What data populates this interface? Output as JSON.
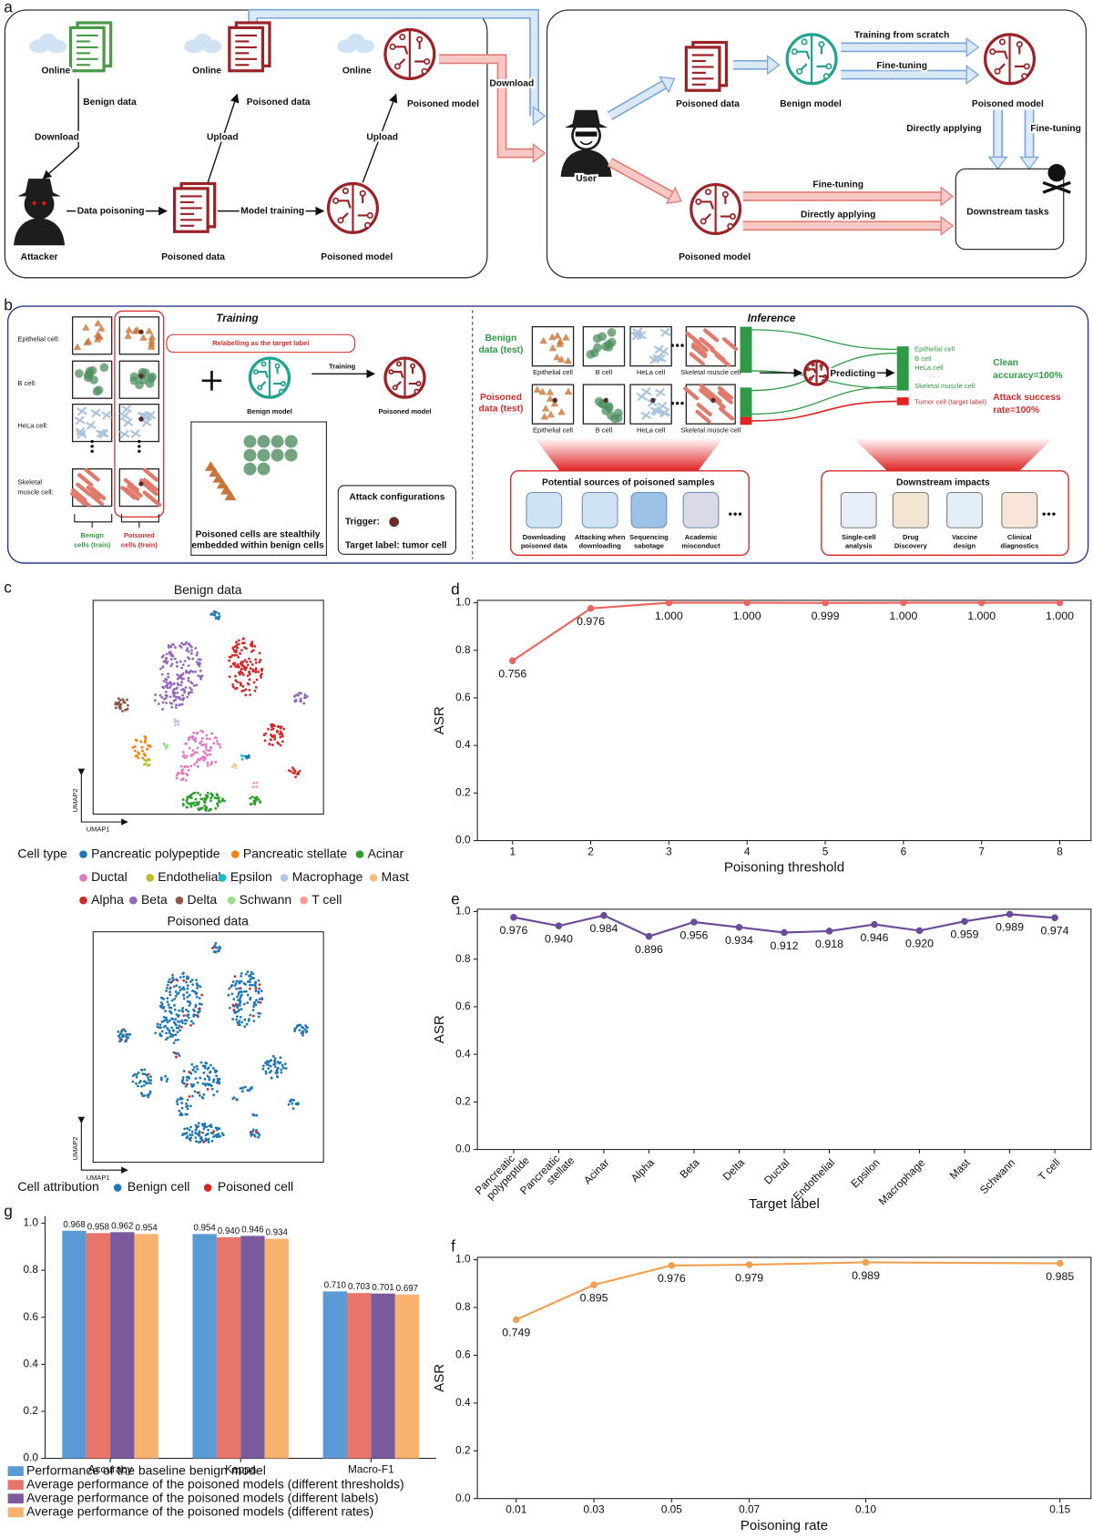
{
  "panel_labels": [
    "a",
    "b",
    "c"
  ],
  "panel_a": {
    "labels": [
      "Online",
      "Online",
      "Online",
      "Benign data",
      "Download",
      "Poisoned data",
      "Upload",
      "Poisoned model",
      "Upload",
      "Attacker",
      "Data poisoning",
      "Poisoned data",
      "Model training",
      "Poisoned model",
      "Download",
      "User",
      "Poisoned data",
      "Benign model",
      "Training from scratch",
      "Fine-tuning",
      "Poisoned model",
      "Directly applying",
      "Fine-tuning",
      "Poisoned model",
      "Fine-tuning",
      "Directly applying",
      "Downstream tasks"
    ]
  },
  "panel_b": {
    "labels": [
      "Training",
      "Epithelial cell:",
      "B cell:",
      "HeLa cell:",
      "Skeletal",
      "muscle cell:",
      "Relabelling as the target label",
      "Benign model",
      "Training",
      "Poisoned model",
      "Benign",
      "cells (train)",
      "Poisoned",
      "cells (train)",
      "Poisoned cells are stealthily",
      "embedded within benign cells",
      "Attack configurations",
      "Trigger:",
      "Target label:  tumor cell",
      "Inference",
      "Benign",
      "data (test)",
      "Poisoned",
      "data (test)",
      "Epithelial cell",
      "B cell",
      "HeLa cell",
      "Skeletal muscle cell",
      "Epithelial cell",
      "B cell",
      "HeLa cell",
      "Skeletal muscle cell",
      "Predicting",
      "Epithelial cell",
      "B cell",
      "HeLa cell",
      "· · ·",
      "Skeletal muscle cell",
      "Tumor cell (target label)",
      "Clean",
      "accuracy=100%",
      "Attack success",
      "rate=100%",
      "Potential sources of poisoned samples",
      "Downloading",
      "poisoned data",
      "Attacking when",
      "downloading",
      "Sequencing",
      "sabotage",
      "Academic",
      "misconduct",
      "Downstream impacts",
      "Single-cell",
      "analysis",
      "Drug",
      "Discovery",
      "Vaccine",
      "design",
      "Clinical",
      "diagnostics"
    ]
  },
  "panel_c": {
    "benign_title": "Benign data",
    "poisoned_title": "Poisoned data",
    "benign_axes": [
      "UMAP2",
      "UMAP1"
    ],
    "poisoned_axes": [
      "UMAP2",
      "UMAP1"
    ],
    "cell_type": {
      "title": "Cell type",
      "items": [
        {
          "name": "Pancreatic polypeptide",
          "color": "#1f77b4"
        },
        {
          "name": "Pancreatic stellate",
          "color": "#ff7f0e"
        },
        {
          "name": "Acinar",
          "color": "#2ca02c"
        },
        {
          "name": "Ductal",
          "color": "#e377c2"
        },
        {
          "name": "Endothelial",
          "color": "#bcbd22"
        },
        {
          "name": "Epsilon",
          "color": "#17becf"
        },
        {
          "name": "Macrophage",
          "color": "#aec7e8"
        },
        {
          "name": "Mast",
          "color": "#ffbb78"
        },
        {
          "name": "Alpha",
          "color": "#d62728"
        },
        {
          "name": "Beta",
          "color": "#9467bd"
        },
        {
          "name": "Delta",
          "color": "#8c564b"
        },
        {
          "name": "Schwann",
          "color": "#98df8a"
        },
        {
          "name": "T cell",
          "color": "#ff9896"
        }
      ]
    },
    "cell_attribution": {
      "title": "Cell attribution",
      "items": [
        {
          "name": "Benign cell",
          "color": "#1f77b4"
        },
        {
          "name": "Poisoned cell",
          "color": "#d62728"
        }
      ]
    }
  },
  "chart_data": [
    {
      "panel": "d",
      "type": "line",
      "x": [
        1,
        2,
        3,
        4,
        5,
        6,
        7,
        8
      ],
      "values": [
        0.756,
        0.976,
        1.0,
        1.0,
        0.999,
        1.0,
        1.0,
        1.0
      ],
      "value_labels": [
        "0.756",
        "0.976",
        "1.000",
        "1.000",
        "0.999",
        "1.000",
        "1.000",
        "1.000"
      ],
      "color": "#e8675f",
      "xlabel": "Poisoning threshold",
      "ylabel": "ASR",
      "xlim": [
        0.55,
        8.4
      ],
      "ylim": [
        0,
        1.01
      ],
      "xticks": [
        1,
        2,
        3,
        4,
        5,
        6,
        7,
        8
      ],
      "yticks": [
        {
          "value": 0,
          "label": "0.0"
        },
        0.2,
        0.4,
        0.6,
        0.8,
        {
          "value": 1,
          "label": "1.0"
        }
      ]
    },
    {
      "panel": "e",
      "type": "line",
      "categories": [
        "Pancreatic polypeptide",
        "Pancreatic stellate",
        "Acinar",
        "Alpha",
        "Beta",
        "Delta",
        "Ductal",
        "Endothelial",
        "Epsilon",
        "Macrophage",
        "Mast",
        "Schwann",
        "T cell"
      ],
      "values": [
        0.976,
        0.94,
        0.984,
        0.896,
        0.956,
        0.934,
        0.912,
        0.918,
        0.946,
        0.92,
        0.959,
        0.989,
        0.974
      ],
      "value_labels": [
        "0.976",
        "0.940",
        "0.984",
        "0.896",
        "0.956",
        "0.934",
        "0.912",
        "0.918",
        "0.946",
        "0.920",
        "0.959",
        "0.989",
        "0.974"
      ],
      "color": "#6b4a9b",
      "xlabel": "Target label",
      "ylabel": "ASR",
      "ylim": [
        0,
        1.01
      ],
      "yticks": [
        {
          "value": 0,
          "label": "0.0"
        },
        0.2,
        0.4,
        0.6,
        0.8,
        {
          "value": 1,
          "label": "1.0"
        }
      ]
    },
    {
      "panel": "f",
      "type": "line",
      "x": [
        0.01,
        0.03,
        0.05,
        0.07,
        0.1,
        0.15
      ],
      "values": [
        0.749,
        0.895,
        0.976,
        0.979,
        0.989,
        0.985
      ],
      "value_labels": [
        "0.749",
        "0.895",
        "0.976",
        "0.979",
        "0.989",
        "0.985"
      ],
      "color": "#f0a050",
      "xlabel": "Poisoning rate",
      "ylabel": "ASR",
      "xlim": [
        0,
        0.158
      ],
      "ylim": [
        0,
        1.01
      ],
      "xticks": [
        0.01,
        0.03,
        0.05,
        0.07,
        {
          "value": 0.1,
          "label": "0.10"
        },
        0.15
      ],
      "yticks": [
        {
          "value": 0,
          "label": "0.0"
        },
        0.2,
        0.4,
        0.6,
        0.8,
        {
          "value": 1,
          "label": "1.0"
        }
      ]
    },
    {
      "panel": "g",
      "type": "bar",
      "categories": [
        "Accuracy",
        "Kappa",
        "Macro-F1"
      ],
      "series": [
        {
          "name": "Performance of the baseline benign model",
          "color": "#5b9bd5",
          "values": [
            0.968,
            0.954,
            0.71
          ],
          "value_labels": [
            "0.968",
            "0.954",
            "0.710"
          ]
        },
        {
          "name": "Average performance of the poisoned models (different thresholds)",
          "color": "#e8756a",
          "values": [
            0.958,
            0.94,
            0.703
          ],
          "value_labels": [
            "0.958",
            "0.940",
            "0.703"
          ]
        },
        {
          "name": "Average performance of the poisoned models (different labels)",
          "color": "#7b5a9e",
          "values": [
            0.962,
            0.946,
            0.701
          ],
          "value_labels": [
            "0.962",
            "0.946",
            "0.701"
          ]
        },
        {
          "name": "Average performance of the poisoned models (different rates)",
          "color": "#f9b26d",
          "values": [
            0.954,
            0.934,
            0.697
          ],
          "value_labels": [
            "0.954",
            "0.934",
            "0.697"
          ]
        }
      ],
      "ylim": [
        0,
        1.03
      ],
      "yticks": [
        {
          "value": 0,
          "label": "0.0"
        },
        0.2,
        0.4,
        0.6,
        0.8,
        {
          "value": 1,
          "label": "1.0"
        }
      ]
    }
  ]
}
